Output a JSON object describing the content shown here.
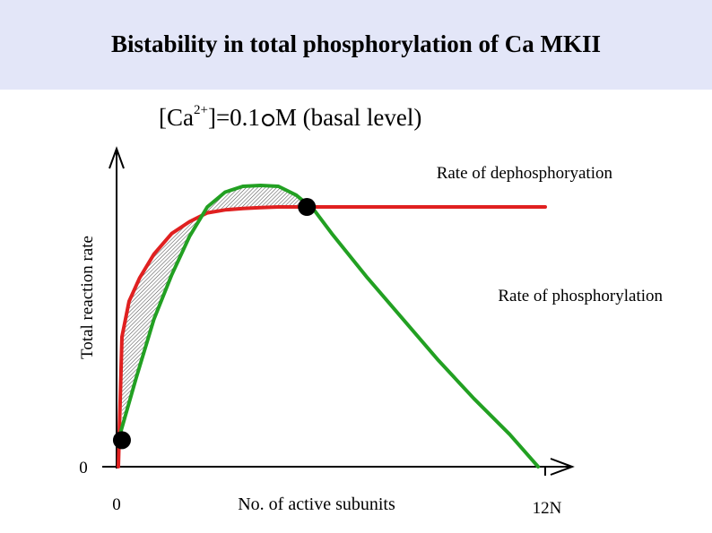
{
  "slide": {
    "title": "Bistability in total phosphorylation of Ca MKII",
    "subtitle": {
      "prefix": "[Ca",
      "superscript": "2+",
      "middle": "]=0.1",
      "mu_symbol_icon": "circle-mu-icon",
      "suffix": "M (basal level)"
    }
  },
  "chart_data": {
    "type": "line",
    "title": "",
    "xlabel": "No. of active subunits",
    "ylabel": "Total reaction rate",
    "x_ticks": [
      "0",
      "12N"
    ],
    "y_ticks": [
      "0"
    ],
    "xlim": [
      0,
      12
    ],
    "ylim": [
      0,
      1.05
    ],
    "grid": false,
    "legend": "none",
    "series": [
      {
        "name": "Rate of dephosphoryation",
        "color": "#e02020",
        "x": [
          0,
          0.1,
          0.3,
          0.6,
          1,
          1.5,
          2,
          2.5,
          3,
          3.5,
          4,
          4.5,
          5,
          6,
          7,
          8,
          9,
          10,
          11,
          12
        ],
        "y": [
          0,
          0.44,
          0.56,
          0.64,
          0.72,
          0.79,
          0.83,
          0.86,
          0.87,
          0.875,
          0.878,
          0.88,
          0.88,
          0.88,
          0.88,
          0.88,
          0.88,
          0.88,
          0.88,
          0.88
        ]
      },
      {
        "name": "Rate of phosphorylation",
        "color": "#22a022",
        "x": [
          0,
          0.5,
          1,
          1.5,
          2,
          2.5,
          3,
          3.5,
          4,
          4.5,
          5,
          5.5,
          6,
          7,
          8,
          9,
          10,
          11,
          11.8
        ],
        "y": [
          0.09,
          0.3,
          0.5,
          0.65,
          0.78,
          0.88,
          0.93,
          0.95,
          0.953,
          0.95,
          0.92,
          0.87,
          0.79,
          0.64,
          0.5,
          0.36,
          0.23,
          0.11,
          0
        ]
      }
    ],
    "fixed_points": [
      {
        "x": 0.1,
        "y": 0.09
      },
      {
        "x": 5.3,
        "y": 0.88
      }
    ],
    "annotations": {
      "shaded_region": "hatched area between the two curves"
    }
  }
}
